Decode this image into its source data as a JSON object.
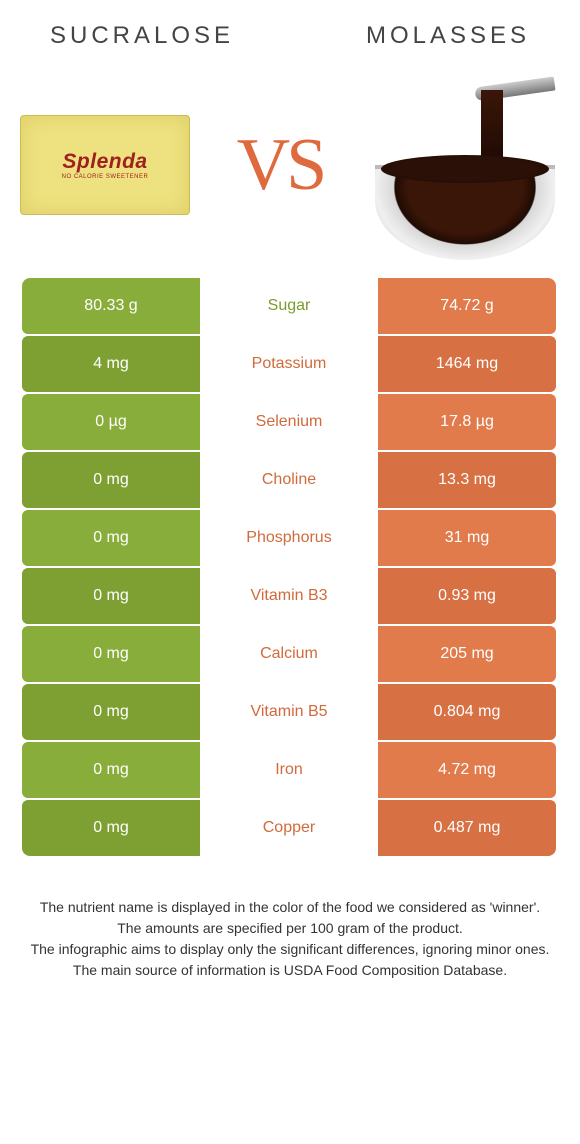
{
  "colors": {
    "green": "#89ad3a",
    "green_dark": "#7ea033",
    "orange": "#e27b4c",
    "orange_dark": "#d77043",
    "text_green": "#7a9c2f",
    "text_orange": "#d16a3c",
    "title": "#444444",
    "footnote": "#333333",
    "bg": "#ffffff"
  },
  "header": {
    "left_title": "sucralose",
    "right_title": "molasses"
  },
  "hero": {
    "packet_brand": "Splenda",
    "packet_sub": "NO CALORIE SWEETENER",
    "vs_text": "VS"
  },
  "table": {
    "winner_left_color": "#7a9c2f",
    "winner_right_color": "#d16a3c",
    "rows": [
      {
        "left": "80.33 g",
        "label": "Sugar",
        "right": "74.72 g",
        "winner": "left"
      },
      {
        "left": "4 mg",
        "label": "Potassium",
        "right": "1464 mg",
        "winner": "right"
      },
      {
        "left": "0 µg",
        "label": "Selenium",
        "right": "17.8 µg",
        "winner": "right"
      },
      {
        "left": "0 mg",
        "label": "Choline",
        "right": "13.3 mg",
        "winner": "right"
      },
      {
        "left": "0 mg",
        "label": "Phosphorus",
        "right": "31 mg",
        "winner": "right"
      },
      {
        "left": "0 mg",
        "label": "Vitamin B3",
        "right": "0.93 mg",
        "winner": "right"
      },
      {
        "left": "0 mg",
        "label": "Calcium",
        "right": "205 mg",
        "winner": "right"
      },
      {
        "left": "0 mg",
        "label": "Vitamin B5",
        "right": "0.804 mg",
        "winner": "right"
      },
      {
        "left": "0 mg",
        "label": "Iron",
        "right": "4.72 mg",
        "winner": "right"
      },
      {
        "left": "0 mg",
        "label": "Copper",
        "right": "0.487 mg",
        "winner": "right"
      }
    ]
  },
  "footnotes": [
    "The nutrient name is displayed in the color of the food we considered as 'winner'.",
    "The amounts are specified per 100 gram of the product.",
    "The infographic aims to display only the significant differences, ignoring minor ones.",
    "The main source of information is USDA Food Composition Database."
  ]
}
